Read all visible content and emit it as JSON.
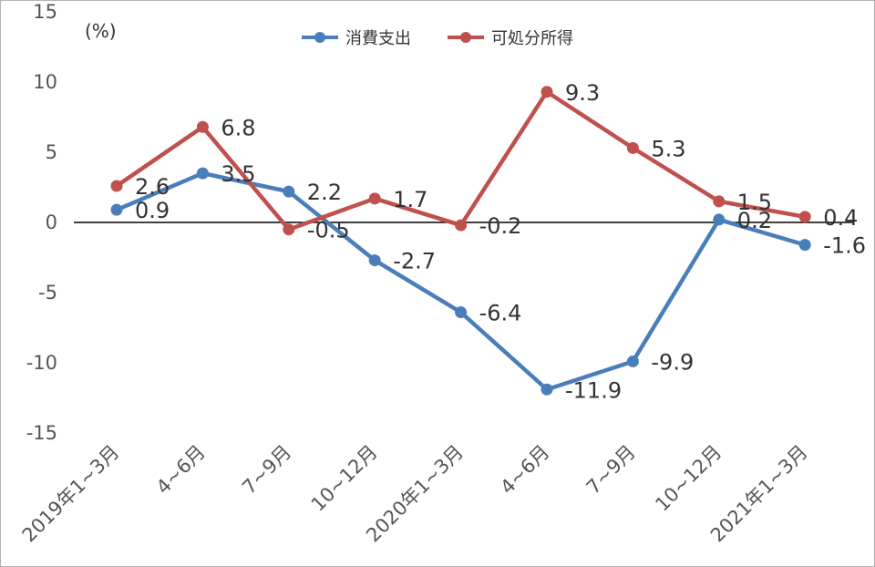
{
  "chart_data": {
    "type": "line",
    "unit_label": "(%)",
    "categories": [
      "2019年1~3月",
      "4~6月",
      "7~9月",
      "10~12月",
      "2020年1~3月",
      "4~6月",
      "7~9月",
      "10~12月",
      "2021年1~3月"
    ],
    "series": [
      {
        "name": "消費支出",
        "color": "#4a7ebb",
        "values": [
          0.9,
          3.5,
          2.2,
          -2.7,
          -6.4,
          -11.9,
          -9.9,
          0.2,
          -1.6
        ],
        "labels": [
          "0.9",
          "3.5",
          "2.2",
          "-2.7",
          "-6.4",
          "-11.9",
          "-9.9",
          "0.2",
          "-1.6"
        ]
      },
      {
        "name": "可処分所得",
        "color": "#c0504d",
        "values": [
          2.6,
          6.8,
          -0.5,
          1.7,
          -0.2,
          9.3,
          5.3,
          1.5,
          0.4
        ],
        "labels": [
          "2.6",
          "6.8",
          "-0.5",
          "1.7",
          "-0.2",
          "9.3",
          "5.3",
          "1.5",
          "0.4"
        ]
      }
    ],
    "y_ticks": [
      "15",
      "10",
      "5",
      "0",
      "-5",
      "-10",
      "-15"
    ],
    "ylim": [
      -15,
      15
    ],
    "zero_line": true,
    "legend_position": "top-center"
  }
}
